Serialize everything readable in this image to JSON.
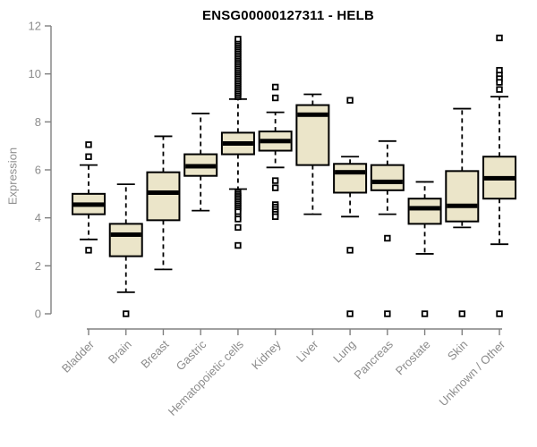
{
  "colors": {
    "box_fill": "#ebe5c9",
    "box_stroke": "#000000",
    "median": "#000000",
    "outlier_fill": "#ffffff",
    "axis_line": "#808080",
    "axis_text": "#8c8c8c",
    "title": "#000000"
  },
  "chart_data": {
    "type": "boxplot",
    "title": "ENSG00000127311 - HELB",
    "xlabel": "",
    "ylabel": "Expression",
    "ylim": [
      0,
      12
    ],
    "yticks": [
      0,
      2,
      4,
      6,
      8,
      10,
      12
    ],
    "grid": "off",
    "legend": "none",
    "categories": [
      "Bladder",
      "Brain",
      "Breast",
      "Gastric",
      "Hematopoietic cells",
      "Kidney",
      "Liver",
      "Lung",
      "Pancreas",
      "Prostate",
      "Skin",
      "Unknown / Other"
    ],
    "series": [
      {
        "name": "Bladder",
        "whisker_low": 3.1,
        "q1": 4.15,
        "median": 4.55,
        "q3": 5.0,
        "whisker_high": 6.2,
        "outliers": [
          2.65,
          6.55,
          7.05
        ]
      },
      {
        "name": "Brain",
        "whisker_low": 0.9,
        "q1": 2.4,
        "median": 3.3,
        "q3": 3.75,
        "whisker_high": 5.4,
        "outliers": [
          0
        ]
      },
      {
        "name": "Breast",
        "whisker_low": 1.85,
        "q1": 3.9,
        "median": 5.05,
        "q3": 5.9,
        "whisker_high": 7.4,
        "outliers": []
      },
      {
        "name": "Gastric",
        "whisker_low": 4.3,
        "q1": 5.75,
        "median": 6.15,
        "q3": 6.65,
        "whisker_high": 8.35,
        "outliers": []
      },
      {
        "name": "Hematopoietic cells",
        "whisker_low": 5.2,
        "q1": 6.65,
        "median": 7.1,
        "q3": 7.55,
        "whisker_high": 8.95,
        "outliers": [
          9.05,
          9.13,
          9.21,
          9.29,
          9.37,
          9.45,
          9.53,
          9.61,
          9.69,
          9.77,
          9.85,
          9.93,
          10.01,
          10.09,
          10.17,
          10.25,
          10.33,
          10.41,
          10.49,
          10.57,
          10.65,
          10.73,
          10.81,
          10.89,
          10.97,
          11.05,
          11.13,
          11.21,
          11.29,
          11.37,
          11.45,
          5.05,
          4.97,
          4.89,
          4.81,
          4.73,
          4.65,
          4.57,
          4.49,
          4.41,
          4.33,
          4.25,
          4.05,
          3.95,
          3.6,
          2.85
        ]
      },
      {
        "name": "Kidney",
        "whisker_low": 6.1,
        "q1": 6.8,
        "median": 7.2,
        "q3": 7.6,
        "whisker_high": 8.4,
        "outliers": [
          9.45,
          9.0,
          5.55,
          5.25,
          4.55,
          4.45,
          4.35,
          4.25,
          4.15,
          4.05
        ]
      },
      {
        "name": "Liver",
        "whisker_low": 4.15,
        "q1": 6.2,
        "median": 8.3,
        "q3": 8.7,
        "whisker_high": 9.15,
        "outliers": []
      },
      {
        "name": "Lung",
        "whisker_low": 4.05,
        "q1": 5.05,
        "median": 5.9,
        "q3": 6.25,
        "whisker_high": 6.55,
        "outliers": [
          8.9,
          2.65,
          0
        ]
      },
      {
        "name": "Pancreas",
        "whisker_low": 4.15,
        "q1": 5.15,
        "median": 5.5,
        "q3": 6.2,
        "whisker_high": 7.2,
        "outliers": [
          3.15,
          0
        ]
      },
      {
        "name": "Prostate",
        "whisker_low": 2.5,
        "q1": 3.75,
        "median": 4.4,
        "q3": 4.8,
        "whisker_high": 5.5,
        "outliers": [
          0
        ]
      },
      {
        "name": "Skin",
        "whisker_low": 3.6,
        "q1": 3.85,
        "median": 4.5,
        "q3": 5.95,
        "whisker_high": 8.55,
        "outliers": [
          0
        ]
      },
      {
        "name": "Unknown / Other",
        "whisker_low": 2.9,
        "q1": 4.8,
        "median": 5.65,
        "q3": 6.55,
        "whisker_high": 9.05,
        "outliers": [
          11.5,
          10.15,
          9.95,
          9.8,
          9.65,
          9.35,
          0
        ]
      }
    ]
  }
}
